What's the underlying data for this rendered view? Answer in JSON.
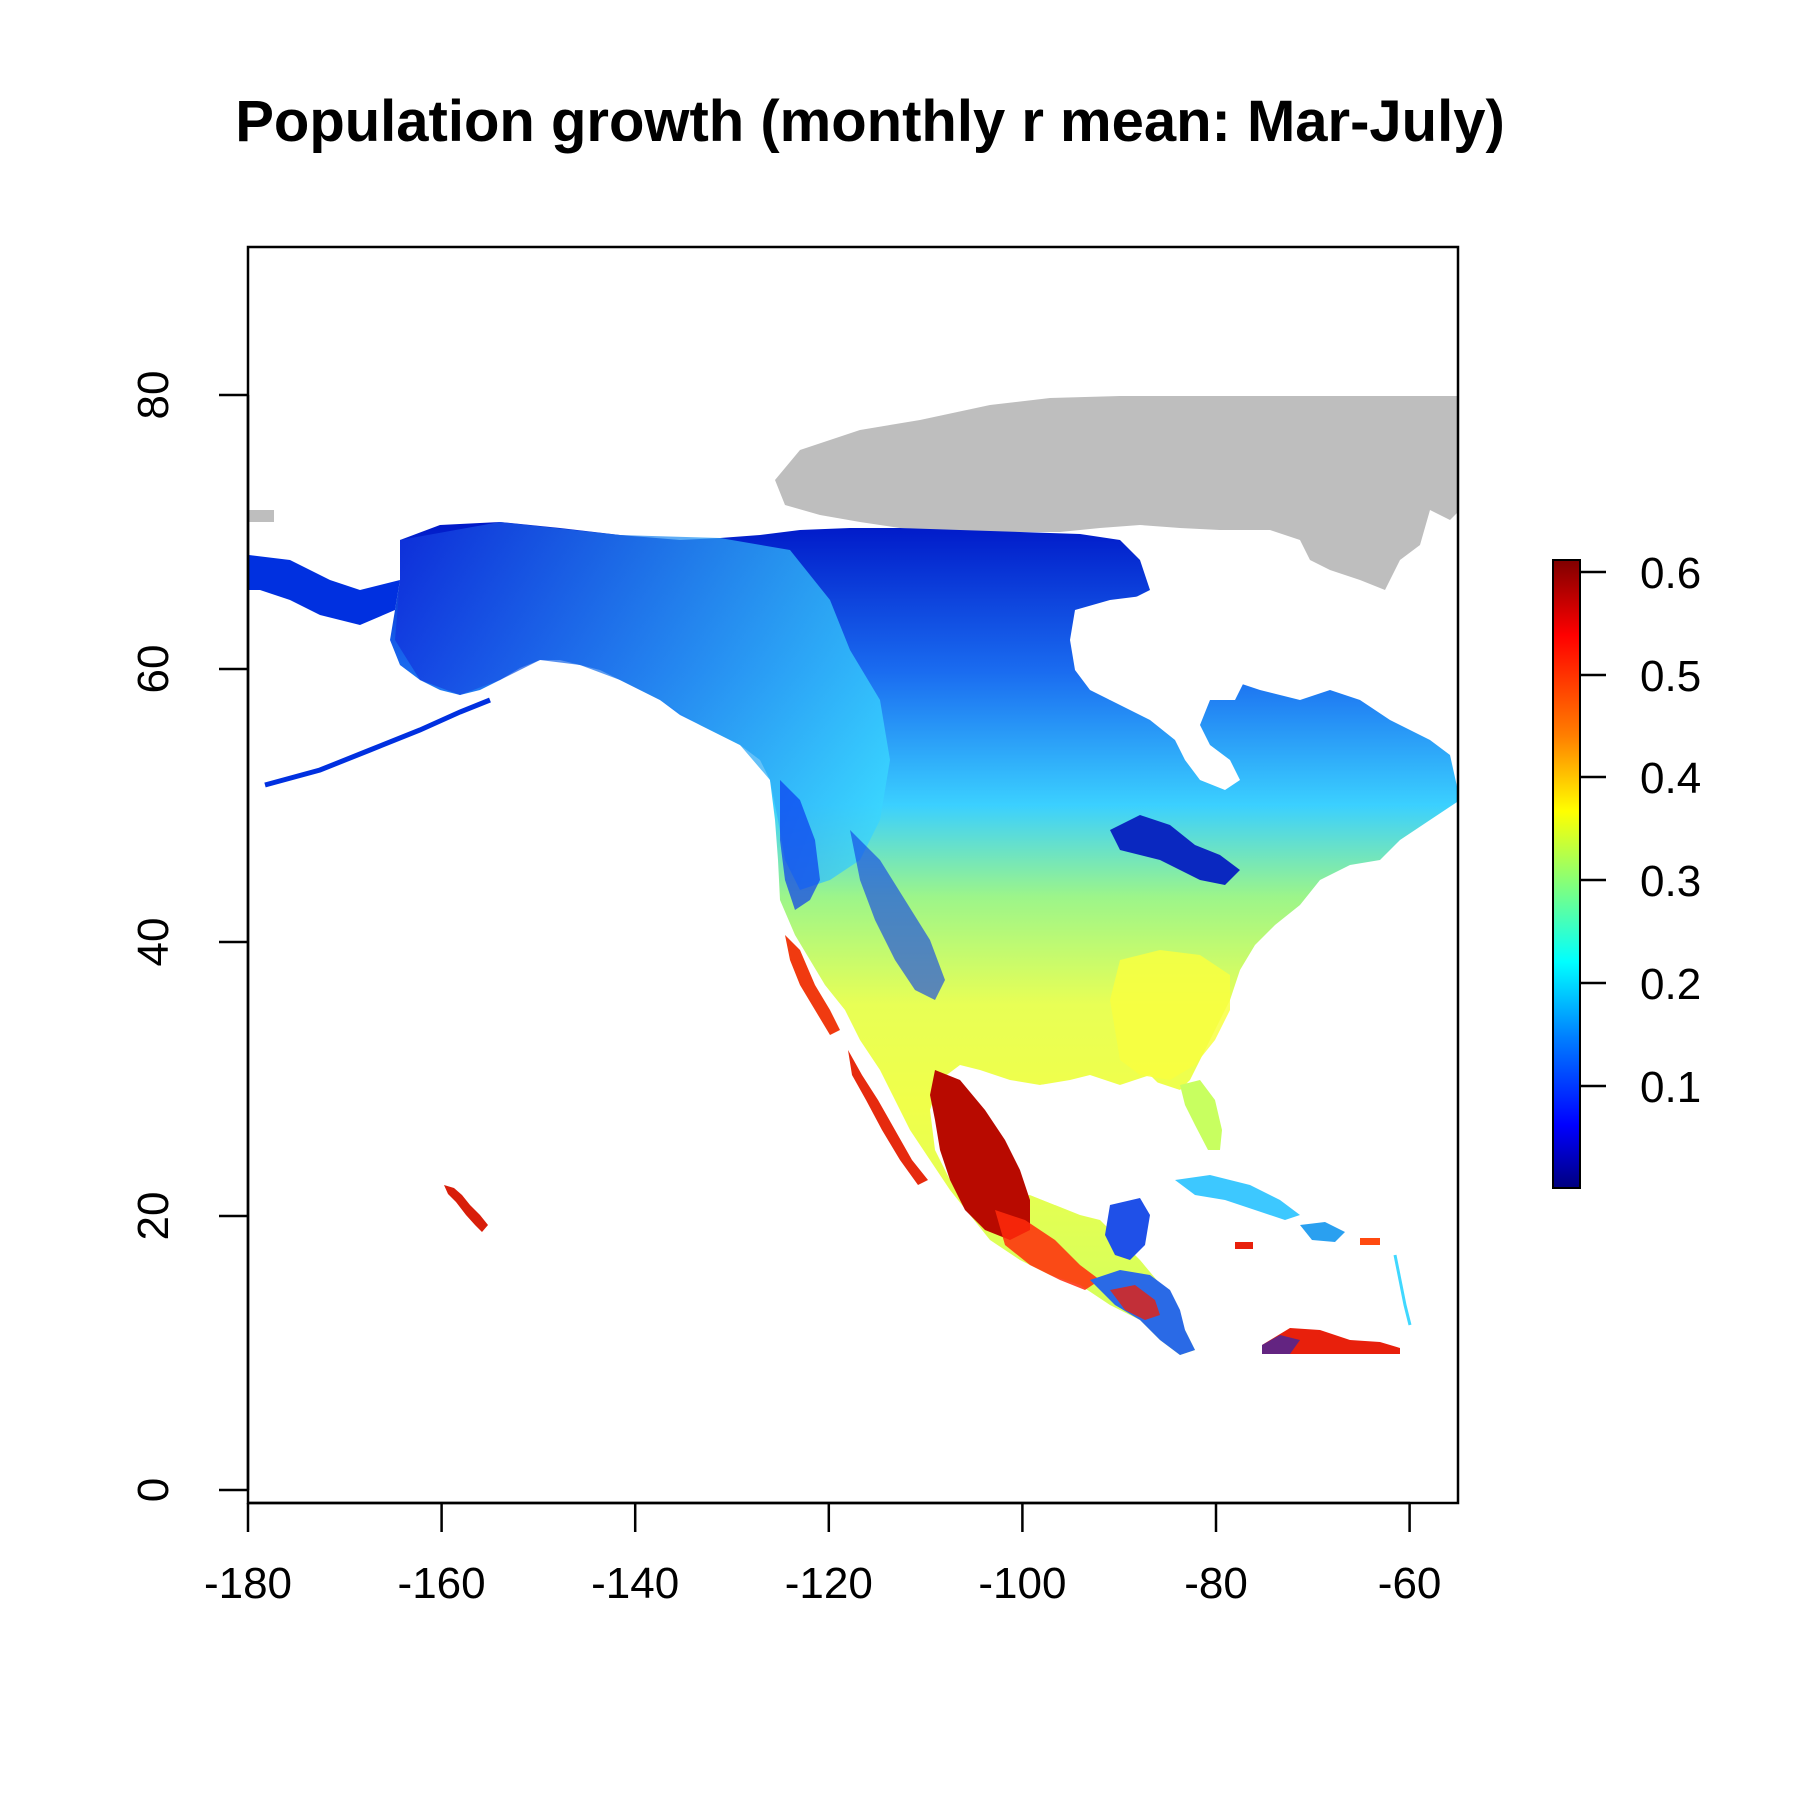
{
  "title": "Population growth (monthly r mean: Mar-July)",
  "map": {
    "x_range": [
      -180,
      -55
    ],
    "y_range": [
      -1,
      91
    ],
    "x_ticks": [
      "-180",
      "-160",
      "-140",
      "-120",
      "-100",
      "-80",
      "-60"
    ],
    "y_ticks": [
      "0",
      "20",
      "40",
      "60",
      "80"
    ],
    "no_data_color": "#bebebe"
  },
  "legend": {
    "range": [
      0.0,
      0.62
    ],
    "ticks": [
      "0.1",
      "0.2",
      "0.3",
      "0.4",
      "0.5",
      "0.6"
    ],
    "colors": [
      "#00007f",
      "#0000ff",
      "#007fff",
      "#00ffff",
      "#7fff7f",
      "#ffff00",
      "#ff7f00",
      "#ff0000",
      "#7f0000"
    ]
  }
}
